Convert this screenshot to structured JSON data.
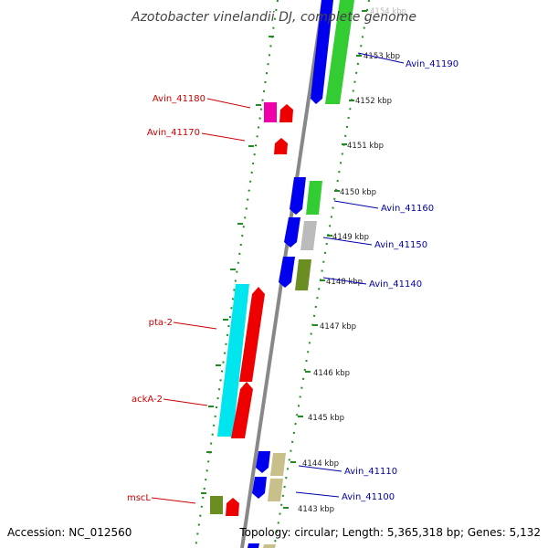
{
  "title": "Azotobacter vinelandii DJ, complete genome",
  "footer": {
    "accession": "Accession: NC_012560",
    "summary": "Topology: circular; Length: 5,365,318 bp; Genes: 5,132"
  },
  "ticks": [
    "4154 kbp",
    "4153 kbp",
    "4152 kbp",
    "4151 kbp",
    "4150 kbp",
    "4149 kbp",
    "4148 kbp",
    "4147 kbp",
    "4146 kbp",
    "4145 kbp",
    "4144 kbp",
    "4143 kbp"
  ],
  "labels_left": [
    "Avin_41180",
    "Avin_41170",
    "pta-2",
    "ackA-2",
    "mscL"
  ],
  "labels_right": [
    "Avin_41190",
    "Avin_41160",
    "Avin_41150",
    "Avin_41140",
    "Avin_41110",
    "Avin_41100"
  ],
  "colors": {
    "blue": "#0000ee",
    "green": "#33cc33",
    "red": "#ee0000",
    "magenta": "#ee00aa",
    "cyan": "#00e5ee",
    "gray": "#bbbbbb",
    "olive": "#6b8e23",
    "khaki": "#c8c08a",
    "axis": "#888888",
    "dotted": "#228b22"
  }
}
